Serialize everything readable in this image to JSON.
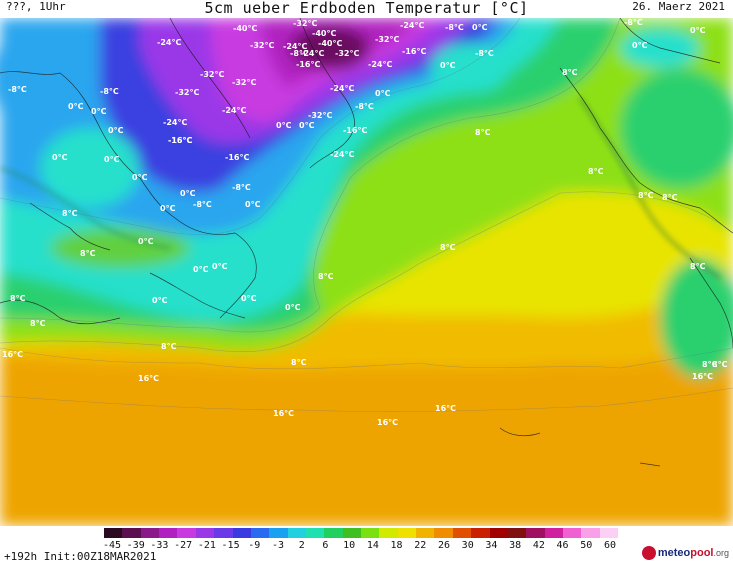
{
  "header": {
    "left": "???, 1Uhr",
    "title": "5cm ueber Erdboden Temperatur [°C]",
    "right": "26. Maerz 2021"
  },
  "map": {
    "labels": [
      "-40°C",
      "-32°C",
      "-24°C",
      "-8°C",
      "0°C",
      "-24°C",
      "-40°C",
      "-32°C",
      "-32°C",
      "-24°C",
      "-40°C",
      "-24°C",
      "-8°C",
      "-32°C",
      "-16°C",
      "-8°C",
      "0°C",
      "-8°C",
      "0°C",
      "-8°C",
      "-8°C",
      "-32°C",
      "-32°C",
      "-24°C",
      "-16°C",
      "-24°C",
      "0°C",
      "0°C",
      "8°C",
      "-32°C",
      "-8°C",
      "0°C",
      "-24°C",
      "-16°C",
      "-24°C",
      "0°C",
      "0°C",
      "-32°C",
      "-16°C",
      "8°C",
      "0°C",
      "0°C",
      "-16°C",
      "-16°C",
      "0°C",
      "-24°C",
      "8°C",
      "-8°C",
      "0°C",
      "0°C",
      "-8°C",
      "0°C",
      "0°C",
      "8°C",
      "8°C",
      "8°C",
      "0°C",
      "8°C",
      "8°C",
      "8°C",
      "0°C",
      "0°C",
      "0°C",
      "8°C",
      "8°C",
      "8°C",
      "0°C",
      "0°C",
      "0°C",
      "8°C",
      "8°C",
      "16°C",
      "8°C",
      "8°C",
      "16°C",
      "16°C",
      "16°C",
      "16°C",
      "16°C"
    ]
  },
  "colorbar": {
    "ticks": [
      "-45",
      "-39",
      "-33",
      "-27",
      "-21",
      "-15",
      "-9",
      "-3",
      "2",
      "6",
      "10",
      "14",
      "18",
      "22",
      "26",
      "30",
      "34",
      "38",
      "42",
      "46",
      "50",
      "60"
    ],
    "colors": [
      "#2a0a20",
      "#5a1050",
      "#8a1a8a",
      "#b020c0",
      "#c83ae0",
      "#9a38e8",
      "#6a3ae8",
      "#3a3ae0",
      "#2a6af0",
      "#1aa0f0",
      "#22d0e0",
      "#20e0b0",
      "#22d060",
      "#40c020",
      "#7ae010",
      "#d0ea00",
      "#f0e000",
      "#f0b400",
      "#f08c00",
      "#e05000",
      "#c82000",
      "#a00000",
      "#801010",
      "#a01060",
      "#d020a0",
      "#f060d0",
      "#f8a0e8",
      "#fcd0f4"
    ]
  },
  "footer": {
    "run_info": "+192h Init:00Z18MAR2021",
    "brand_name": "meteo",
    "brand_suffix": "pool",
    "brand_tld": ".org"
  }
}
